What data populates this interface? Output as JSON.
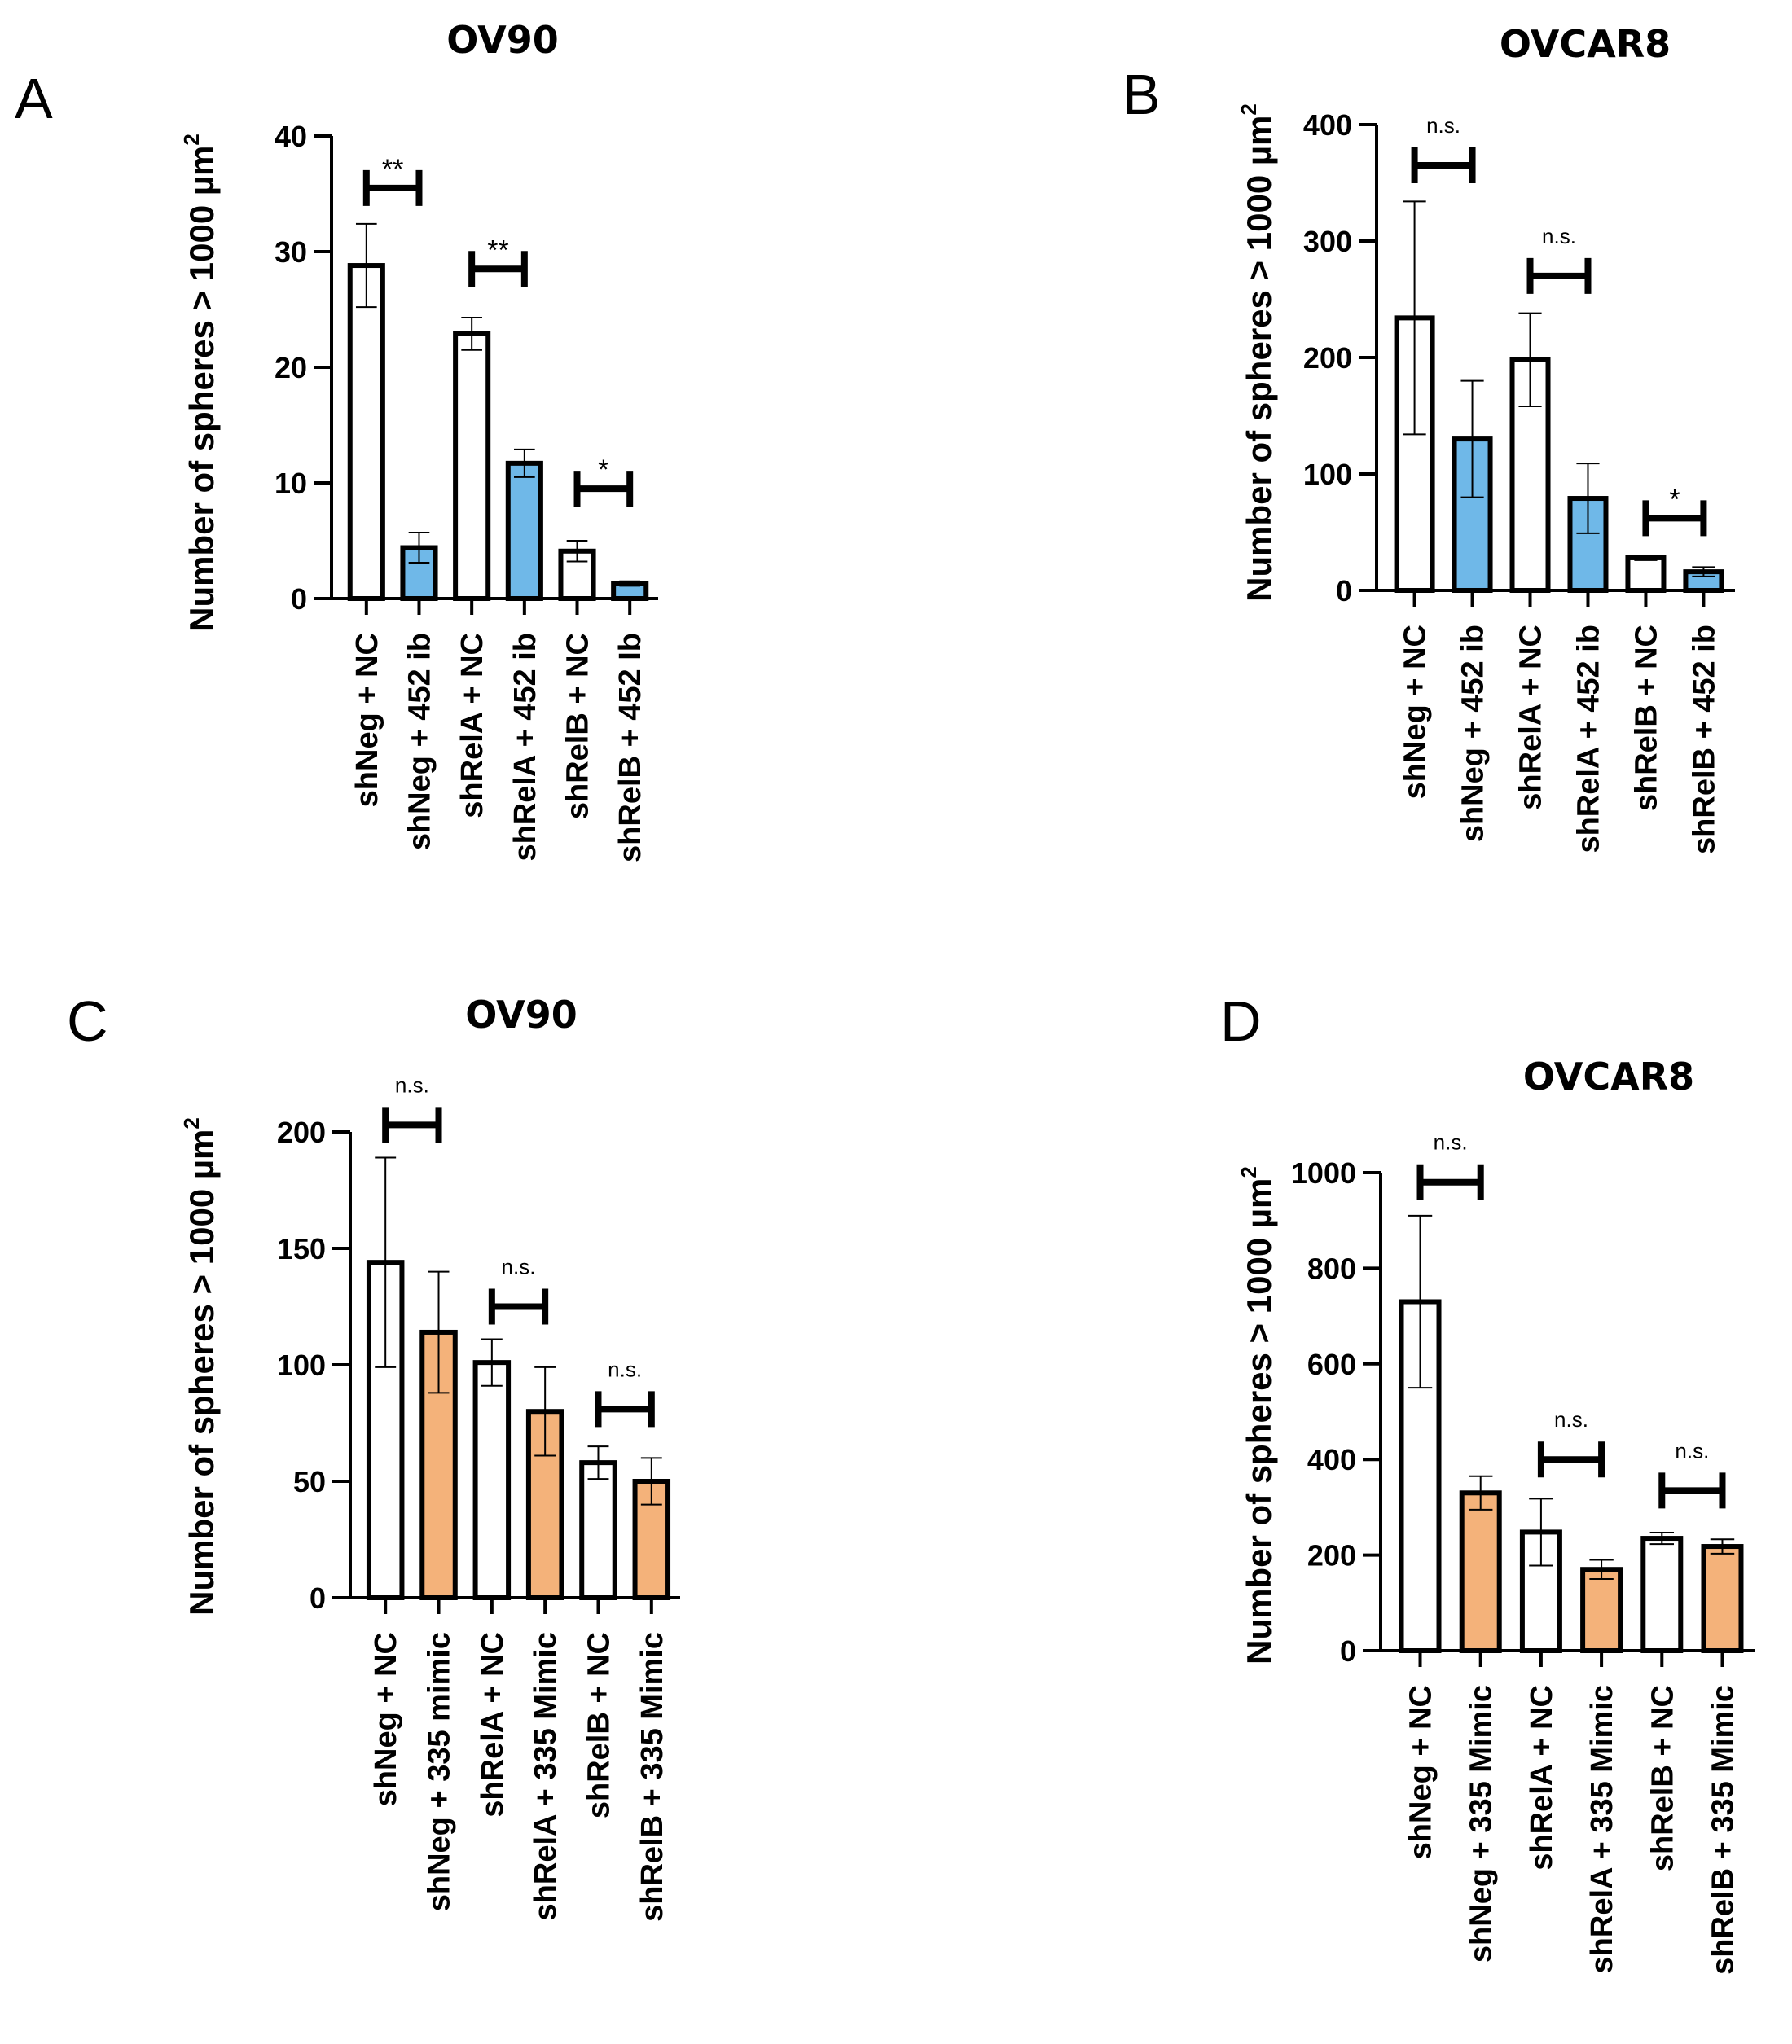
{
  "figure": {
    "colors": {
      "white": "#ffffff",
      "blue": "#6fb8e8",
      "orange": "#f4b27a",
      "ink": "#000000"
    }
  },
  "chart_data": [
    {
      "panel": "A",
      "type": "bar",
      "title": "OV90",
      "ylabel": "Number of spheres > 1000 µm",
      "ylabel_superscript": "2",
      "ylim": [
        0,
        40
      ],
      "yticks": [
        0,
        10,
        20,
        30,
        40
      ],
      "categories": [
        "shNeg + NC",
        "shNeg + 452 ib",
        "shRelA + NC",
        "shRelA + 452 ib",
        "shRelB + NC",
        "shRelB + 452 Ib"
      ],
      "values": [
        28.8,
        4.4,
        22.9,
        11.7,
        4.1,
        1.3
      ],
      "errors": [
        3.6,
        1.3,
        1.4,
        1.2,
        0.9,
        0.2
      ],
      "fills": [
        "white",
        "blue",
        "white",
        "blue",
        "white",
        "blue"
      ],
      "significance": [
        {
          "pair": [
            0,
            1
          ],
          "label": "**",
          "at": 35.5
        },
        {
          "pair": [
            2,
            3
          ],
          "label": "**",
          "at": 28.5
        },
        {
          "pair": [
            4,
            5
          ],
          "label": "*",
          "at": 9.5
        }
      ]
    },
    {
      "panel": "B",
      "type": "bar",
      "title": "OVCAR8",
      "ylabel": "Number of spheres > 1000 µm",
      "ylabel_superscript": "2",
      "ylim": [
        0,
        400
      ],
      "yticks": [
        0,
        100,
        200,
        300,
        400
      ],
      "categories": [
        "shNeg + NC",
        "shNeg + 452 ib",
        "shRelA + NC",
        "shRelA + 452 ib",
        "shRelB + NC",
        "shRelB + 452 ib"
      ],
      "values": [
        234,
        130,
        198,
        79,
        28,
        16
      ],
      "errors": [
        100,
        50,
        40,
        30,
        2,
        4
      ],
      "fills": [
        "white",
        "blue",
        "white",
        "blue",
        "white",
        "blue"
      ],
      "significance": [
        {
          "pair": [
            0,
            1
          ],
          "label": "n.s.",
          "at": 365
        },
        {
          "pair": [
            2,
            3
          ],
          "label": "n.s.",
          "at": 270
        },
        {
          "pair": [
            4,
            5
          ],
          "label": "*",
          "at": 62
        }
      ]
    },
    {
      "panel": "C",
      "type": "bar",
      "title": "OV90",
      "ylabel": "Number of spheres > 1000 µm",
      "ylabel_superscript": "2",
      "ylim": [
        0,
        200
      ],
      "yticks": [
        0,
        50,
        100,
        150,
        200
      ],
      "categories": [
        "shNeg + NC",
        "shNeg + 335 mimic",
        "shRelA + NC",
        "shRelA + 335 Mimic",
        "shRelB + NC",
        "shRelB + 335 Mimic"
      ],
      "values": [
        144,
        114,
        101,
        80,
        58,
        50
      ],
      "errors": [
        45,
        26,
        10,
        19,
        7,
        10
      ],
      "fills": [
        "white",
        "orange",
        "white",
        "orange",
        "white",
        "orange"
      ],
      "significance": [
        {
          "pair": [
            0,
            1
          ],
          "label": "n.s.",
          "at": 203
        },
        {
          "pair": [
            2,
            3
          ],
          "label": "n.s.",
          "at": 125
        },
        {
          "pair": [
            4,
            5
          ],
          "label": "n.s.",
          "at": 81
        }
      ]
    },
    {
      "panel": "D",
      "type": "bar",
      "title": "OVCAR8",
      "ylabel": "Number of spheres > 1000 µm",
      "ylabel_superscript": "2",
      "ylim": [
        0,
        1000
      ],
      "yticks": [
        0,
        200,
        400,
        600,
        800,
        1000
      ],
      "categories": [
        "shNeg + NC",
        "shNeg + 335 Mimic",
        "shRelA + NC",
        "shRelA + 335 Mimic",
        "shRelB + NC",
        "shRelB + 335 Mimic"
      ],
      "values": [
        730,
        330,
        248,
        170,
        235,
        218
      ],
      "errors": [
        180,
        35,
        70,
        20,
        12,
        15
      ],
      "fills": [
        "white",
        "orange",
        "white",
        "orange",
        "white",
        "orange"
      ],
      "significance": [
        {
          "pair": [
            0,
            1
          ],
          "label": "n.s.",
          "at": 980
        },
        {
          "pair": [
            2,
            3
          ],
          "label": "n.s.",
          "at": 400
        },
        {
          "pair": [
            4,
            5
          ],
          "label": "n.s.",
          "at": 335
        }
      ]
    }
  ]
}
